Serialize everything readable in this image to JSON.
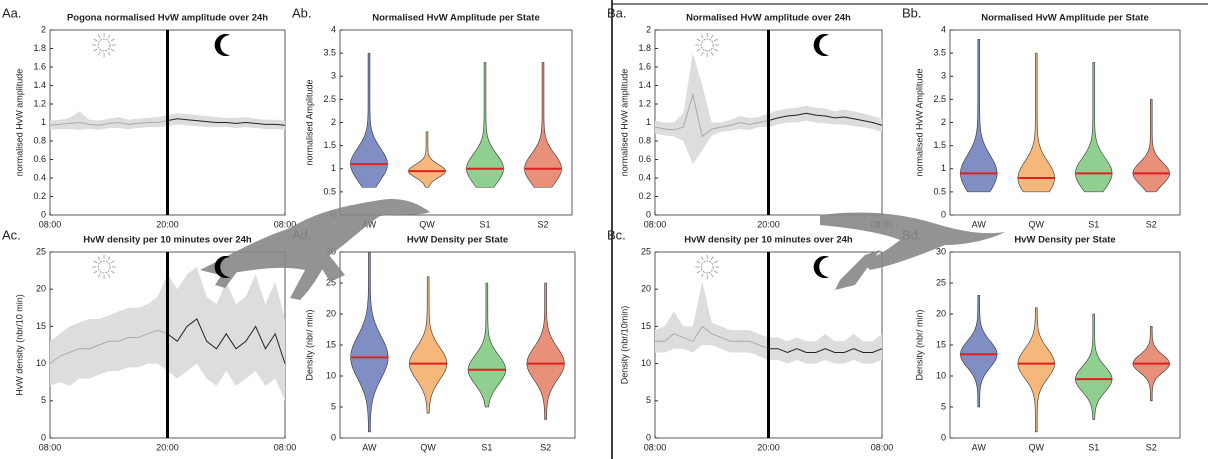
{
  "chart_data": [
    {
      "type": "line",
      "panel_label": "Aa.",
      "title": "Pogona normalised HvW amplitude over 24h",
      "ylabel": "normalised HvW amplitude",
      "x": [
        0,
        1,
        2,
        3,
        4,
        5,
        6,
        7,
        8,
        9,
        10,
        11,
        12,
        13,
        14,
        15,
        16,
        17,
        18,
        19,
        20,
        21,
        22,
        23,
        24
      ],
      "values": [
        0.97,
        0.98,
        0.99,
        1.0,
        0.98,
        0.97,
        0.99,
        1.0,
        0.98,
        0.99,
        1.0,
        1.0,
        1.02,
        1.04,
        1.03,
        1.02,
        1.01,
        1.0,
        1.0,
        0.99,
        1.0,
        0.99,
        0.98,
        0.98,
        0.97
      ],
      "lower": [
        0.92,
        0.93,
        0.93,
        0.92,
        0.93,
        0.92,
        0.94,
        0.94,
        0.93,
        0.94,
        0.95,
        0.95,
        0.96,
        0.98,
        0.97,
        0.96,
        0.95,
        0.95,
        0.95,
        0.94,
        0.95,
        0.94,
        0.93,
        0.93,
        0.92
      ],
      "upper": [
        1.02,
        1.03,
        1.05,
        1.12,
        1.03,
        1.02,
        1.04,
        1.06,
        1.03,
        1.04,
        1.05,
        1.06,
        1.08,
        1.1,
        1.09,
        1.08,
        1.07,
        1.06,
        1.05,
        1.05,
        1.06,
        1.04,
        1.03,
        1.03,
        1.02
      ],
      "vline": 12,
      "day_color": "#aaaaaa",
      "night_color": "#222222",
      "band_color": "#dddddd",
      "xlim": [
        0,
        24
      ],
      "xticks": [
        {
          "value": 0,
          "label": "08:00"
        },
        {
          "value": 12,
          "label": "20:00"
        },
        {
          "value": 24,
          "label": "08:00"
        }
      ],
      "ylim": [
        0,
        2
      ],
      "yticks": [
        0,
        0.2,
        0.4,
        0.6,
        0.8,
        1,
        1.2,
        1.4,
        1.6,
        1.8,
        2
      ]
    },
    {
      "type": "violin",
      "panel_label": "Ab.",
      "title": "Normalised HvW Amplitude per State",
      "ylabel": "normalised Amplitude",
      "categories": [
        "AW",
        "QW",
        "S1",
        "S2"
      ],
      "colors": [
        "#7f8fc4",
        "#f5b77a",
        "#8fcf8f",
        "#e8907a"
      ],
      "medians": [
        1.1,
        0.95,
        1.0,
        1.0
      ],
      "mins": [
        0.6,
        0.6,
        0.6,
        0.6
      ],
      "maxes": [
        3.5,
        1.8,
        3.3,
        3.3
      ],
      "ylim": [
        0,
        4
      ],
      "yticks": [
        0,
        0.5,
        1,
        1.5,
        2,
        2.5,
        3,
        3.5,
        4
      ]
    },
    {
      "type": "line",
      "panel_label": "Ac.",
      "title": "HvW density per 10 minutes over 24h",
      "ylabel": "HvW density (nbr/10 min)",
      "x": [
        0,
        1,
        2,
        3,
        4,
        5,
        6,
        7,
        8,
        9,
        10,
        11,
        12,
        13,
        14,
        15,
        16,
        17,
        18,
        19,
        20,
        21,
        22,
        23,
        24
      ],
      "values": [
        10,
        11,
        11.5,
        12,
        12,
        12.5,
        13,
        13,
        13.5,
        13.5,
        14,
        14.5,
        14,
        13,
        15,
        16,
        13,
        12,
        14,
        12,
        13,
        15,
        12,
        14,
        10
      ],
      "lower": [
        7,
        7.5,
        7,
        8,
        8,
        8.5,
        9,
        9,
        9.5,
        9.5,
        10,
        10,
        9,
        8,
        9,
        10,
        8,
        7,
        9,
        7,
        8,
        9,
        7,
        8,
        5
      ],
      "upper": [
        13,
        14,
        15,
        15.5,
        16,
        16,
        16.5,
        17,
        17.5,
        17.5,
        18,
        19,
        22,
        20,
        22,
        23,
        19,
        18,
        21,
        18,
        19,
        22,
        18,
        21,
        16
      ],
      "vline": 12,
      "day_color": "#aaaaaa",
      "night_color": "#222222",
      "band_color": "#dddddd",
      "xlim": [
        0,
        24
      ],
      "xticks": [
        {
          "value": 0,
          "label": "08:00"
        },
        {
          "value": 12,
          "label": "20:00"
        },
        {
          "value": 24,
          "label": "08:00"
        }
      ],
      "ylim": [
        0,
        25
      ],
      "yticks": [
        0,
        5,
        10,
        15,
        20,
        25
      ]
    },
    {
      "type": "violin",
      "panel_label": "Ad.",
      "title": "HvW Density per State",
      "ylabel": "Density (nbr/ min)",
      "categories": [
        "AW",
        "QW",
        "S1",
        "S2"
      ],
      "colors": [
        "#7f8fc4",
        "#f5b77a",
        "#8fcf8f",
        "#e8907a"
      ],
      "medians": [
        13,
        12,
        11,
        12
      ],
      "mins": [
        1,
        4,
        5,
        3
      ],
      "maxes": [
        30,
        26,
        25,
        25
      ],
      "ylim": [
        0,
        30
      ],
      "yticks": [
        0,
        5,
        10,
        15,
        20,
        25,
        30
      ]
    },
    {
      "type": "line",
      "panel_label": "Ba.",
      "title": "Normalised HvW amplitude over 24h",
      "ylabel": "normalised HvW amplitude",
      "x": [
        0,
        1,
        2,
        3,
        4,
        5,
        6,
        7,
        8,
        9,
        10,
        11,
        12,
        13,
        14,
        15,
        16,
        17,
        18,
        19,
        20,
        21,
        22,
        23,
        24
      ],
      "values": [
        0.95,
        0.93,
        0.92,
        0.95,
        1.3,
        0.85,
        0.93,
        0.95,
        0.97,
        1.0,
        0.98,
        1.0,
        1.02,
        1.05,
        1.07,
        1.08,
        1.1,
        1.08,
        1.07,
        1.05,
        1.06,
        1.04,
        1.02,
        1.0,
        0.97
      ],
      "lower": [
        0.88,
        0.86,
        0.85,
        0.8,
        0.55,
        0.7,
        0.86,
        0.9,
        0.91,
        0.93,
        0.92,
        0.95,
        0.95,
        0.98,
        1.0,
        1.0,
        1.02,
        1.0,
        0.99,
        0.98,
        0.98,
        0.96,
        0.95,
        0.93,
        0.9
      ],
      "upper": [
        1.02,
        1.0,
        1.0,
        1.1,
        1.75,
        1.4,
        1.0,
        1.0,
        1.03,
        1.07,
        1.05,
        1.06,
        1.1,
        1.13,
        1.15,
        1.16,
        1.18,
        1.16,
        1.15,
        1.12,
        1.14,
        1.12,
        1.1,
        1.07,
        1.04
      ],
      "vline": 12,
      "day_color": "#aaaaaa",
      "night_color": "#222222",
      "band_color": "#dddddd",
      "xlim": [
        0,
        24
      ],
      "xticks": [
        {
          "value": 0,
          "label": "08:00"
        },
        {
          "value": 12,
          "label": "20:00"
        },
        {
          "value": 24,
          "label": "08:00"
        }
      ],
      "ylim": [
        0,
        2
      ],
      "yticks": [
        0,
        0.2,
        0.4,
        0.6,
        0.8,
        1,
        1.2,
        1.4,
        1.6,
        1.8,
        2
      ]
    },
    {
      "type": "violin",
      "panel_label": "Bb.",
      "title": "Normalised HvW Amplitude per State",
      "ylabel": "normalised HvW Amplitude",
      "categories": [
        "AW",
        "QW",
        "S1",
        "S2"
      ],
      "colors": [
        "#7f8fc4",
        "#f5b77a",
        "#8fcf8f",
        "#e8907a"
      ],
      "medians": [
        0.9,
        0.8,
        0.9,
        0.9
      ],
      "mins": [
        0.5,
        0.5,
        0.5,
        0.5
      ],
      "maxes": [
        3.8,
        3.5,
        3.3,
        2.5
      ],
      "ylim": [
        0,
        4
      ],
      "yticks": [
        0,
        0.5,
        1,
        1.5,
        2,
        2.5,
        3,
        3.5,
        4
      ]
    },
    {
      "type": "line",
      "panel_label": "Bc.",
      "title": "HvW density per 10 minutes over 24h",
      "ylabel": "Density (nbr/10min)",
      "x": [
        0,
        1,
        2,
        3,
        4,
        5,
        6,
        7,
        8,
        9,
        10,
        11,
        12,
        13,
        14,
        15,
        16,
        17,
        18,
        19,
        20,
        21,
        22,
        23,
        24
      ],
      "values": [
        13,
        13,
        14,
        13.5,
        13,
        15,
        14,
        13.5,
        13,
        13,
        13,
        12.5,
        12,
        12,
        11.5,
        12,
        11.5,
        11.5,
        12,
        11.5,
        11.5,
        12,
        11.5,
        11.5,
        12
      ],
      "lower": [
        11.5,
        11.5,
        12,
        12,
        11.5,
        12.5,
        12.5,
        12,
        11.5,
        11.5,
        11.5,
        11,
        10.5,
        10.5,
        10,
        10.5,
        10,
        10,
        10.5,
        10,
        10,
        10.5,
        10,
        10,
        10.5
      ],
      "upper": [
        14.5,
        15,
        17,
        15,
        15,
        21,
        15.5,
        15,
        14.5,
        14.5,
        14.5,
        14,
        13.5,
        13.5,
        13,
        13.5,
        13,
        13,
        14,
        13,
        13,
        14,
        13,
        13,
        14
      ],
      "vline": 12,
      "day_color": "#aaaaaa",
      "night_color": "#222222",
      "band_color": "#dddddd",
      "xlim": [
        0,
        24
      ],
      "xticks": [
        {
          "value": 0,
          "label": "08:00"
        },
        {
          "value": 12,
          "label": "20:00"
        },
        {
          "value": 24,
          "label": "08:00"
        }
      ],
      "ylim": [
        0,
        25
      ],
      "yticks": [
        0,
        5,
        10,
        15,
        20,
        25
      ]
    },
    {
      "type": "violin",
      "panel_label": "Bd.",
      "title": "HvW Density per State",
      "ylabel": "Density (nbr/ min)",
      "categories": [
        "AW",
        "QW",
        "S1",
        "S2"
      ],
      "colors": [
        "#7f8fc4",
        "#f5b77a",
        "#8fcf8f",
        "#e8907a"
      ],
      "medians": [
        13.5,
        12,
        9.5,
        12
      ],
      "mins": [
        5,
        1,
        3,
        6
      ],
      "maxes": [
        23,
        21,
        20,
        18
      ],
      "ylim": [
        0,
        30
      ],
      "yticks": [
        0,
        5,
        10,
        15,
        20,
        25,
        30
      ]
    }
  ]
}
